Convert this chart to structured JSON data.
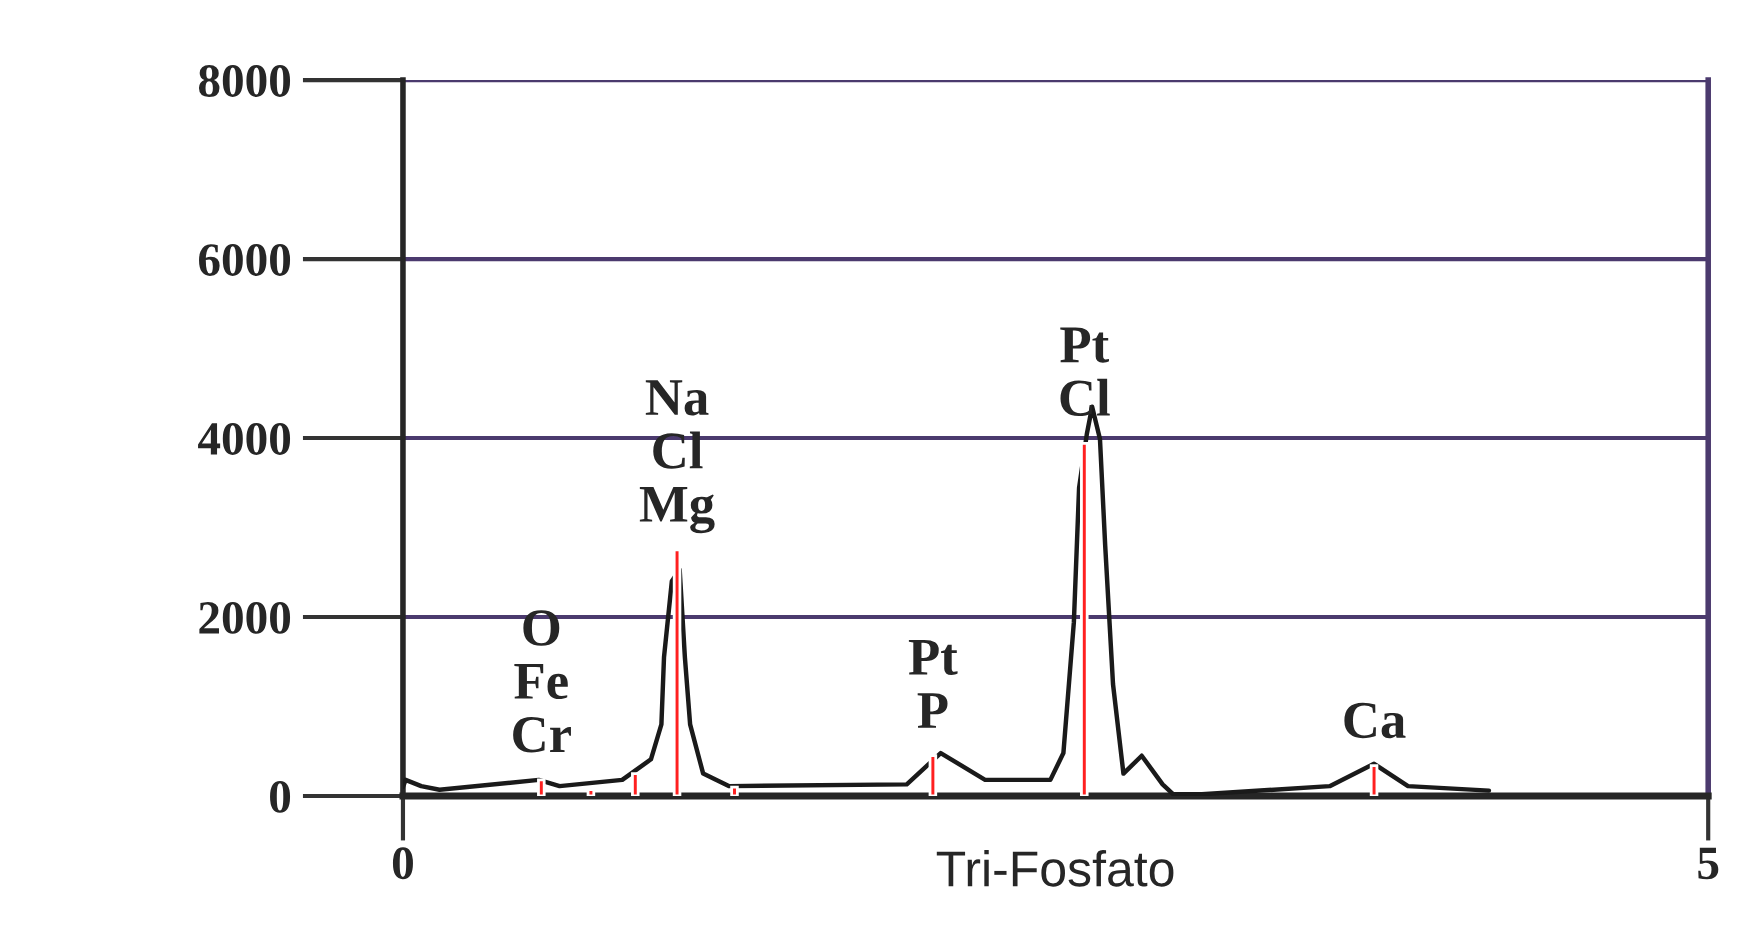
{
  "chart_data": {
    "type": "line",
    "xlabel": "Tri-Fosfato",
    "xlim": [
      0,
      5
    ],
    "ylim": [
      0,
      8000
    ],
    "xticks": [
      0,
      5
    ],
    "yticks": [
      0,
      2000,
      4000,
      6000,
      8000
    ],
    "grid": "y",
    "legend": false,
    "marker": "none",
    "series": [
      {
        "color": "#1a1a1a",
        "x": [
          0.0,
          0.01,
          0.07,
          0.14,
          0.52,
          0.6,
          0.84,
          0.95,
          0.99,
          1.0,
          1.03,
          1.06,
          1.08,
          1.1,
          1.15,
          1.25,
          1.93,
          2.06,
          2.23,
          2.48,
          2.53,
          2.57,
          2.59,
          2.62,
          2.64,
          2.67,
          2.69,
          2.72,
          2.76,
          2.83,
          2.91,
          2.95,
          3.06,
          3.55,
          3.72,
          3.85,
          4.16
        ],
        "values": [
          100,
          180,
          110,
          70,
          180,
          110,
          180,
          410,
          800,
          1550,
          2400,
          2530,
          1550,
          800,
          250,
          110,
          130,
          480,
          180,
          180,
          480,
          1940,
          3440,
          4050,
          4350,
          3990,
          2800,
          1250,
          250,
          450,
          130,
          20,
          20,
          110,
          360,
          110,
          60
        ]
      },
      {
        "type": "bar",
        "color": "#ff2020",
        "x": [
          0.53,
          0.72,
          0.89,
          1.05,
          1.27,
          2.03,
          2.61,
          3.72
        ],
        "values": [
          180,
          70,
          250,
          2750,
          100,
          450,
          3940,
          340
        ]
      }
    ],
    "annotations": [
      {
        "text": "O\nFe\nCr",
        "x": 0.53,
        "y": 180
      },
      {
        "text": "Na\nCl\nMg",
        "x": 1.05,
        "y": 2750
      },
      {
        "text": "Pt\nP",
        "x": 2.03,
        "y": 450
      },
      {
        "text": "Pt\nCl",
        "x": 2.61,
        "y": 3940
      },
      {
        "text": "Ca",
        "x": 3.72,
        "y": 340
      }
    ]
  }
}
